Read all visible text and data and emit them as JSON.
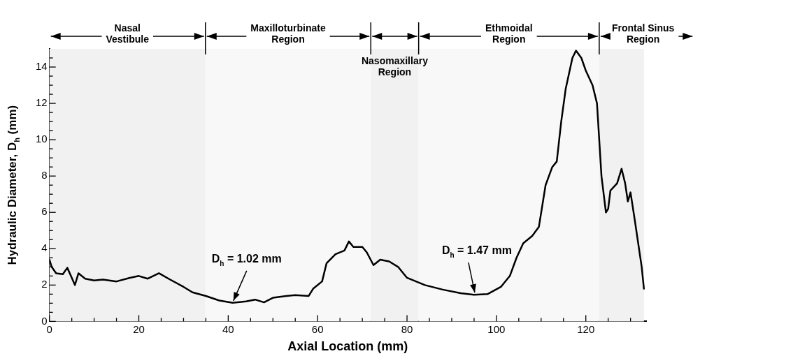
{
  "chart_data": {
    "type": "line",
    "xlabel": "Axial Location (mm)",
    "ylabel": "Hydraulic Diameter, D$_{h}$ (mm)",
    "color": "#000000",
    "grid": false,
    "legend": false,
    "marker": "none",
    "line_style": "solid",
    "xlim": [
      0,
      133.5
    ],
    "ylim": [
      0,
      15
    ],
    "xticks": [
      0,
      {
        "value": 5,
        "label": null
      },
      {
        "value": 10,
        "label": null
      },
      {
        "value": 15,
        "label": null
      },
      20,
      {
        "value": 25,
        "label": null
      },
      {
        "value": 30,
        "label": null
      },
      {
        "value": 35,
        "label": null
      },
      40,
      {
        "value": 45,
        "label": null
      },
      {
        "value": 50,
        "label": null
      },
      {
        "value": 55,
        "label": null
      },
      60,
      {
        "value": 65,
        "label": null
      },
      {
        "value": 70,
        "label": null
      },
      {
        "value": 75,
        "label": null
      },
      80,
      {
        "value": 85,
        "label": null
      },
      {
        "value": 90,
        "label": null
      },
      {
        "value": 95,
        "label": null
      },
      100,
      {
        "value": 105,
        "label": null
      },
      {
        "value": 110,
        "label": null
      },
      {
        "value": 115,
        "label": null
      },
      120,
      {
        "value": 125,
        "label": null
      },
      {
        "value": 130,
        "label": null
      }
    ],
    "yticks": [
      0,
      {
        "value": 0.5,
        "label": null
      },
      {
        "value": 1,
        "label": null
      },
      {
        "value": 1.5,
        "label": null
      },
      2,
      {
        "value": 2.5,
        "label": null
      },
      {
        "value": 3,
        "label": null
      },
      {
        "value": 3.5,
        "label": null
      },
      4,
      {
        "value": 4.5,
        "label": null
      },
      {
        "value": 5,
        "label": null
      },
      {
        "value": 5.5,
        "label": null
      },
      6,
      {
        "value": 6.5,
        "label": null
      },
      {
        "value": 7,
        "label": null
      },
      {
        "value": 7.5,
        "label": null
      },
      8,
      {
        "value": 8.5,
        "label": null
      },
      {
        "value": 9,
        "label": null
      },
      {
        "value": 9.5,
        "label": null
      },
      10,
      {
        "value": 10.5,
        "label": null
      },
      {
        "value": 11,
        "label": null
      },
      {
        "value": 11.5,
        "label": null
      },
      12,
      {
        "value": 12.5,
        "label": null
      },
      {
        "value": 13,
        "label": null
      },
      {
        "value": 13.5,
        "label": null
      },
      14,
      {
        "value": 14.5,
        "label": null
      }
    ],
    "x": [
      0,
      0.5,
      1.5,
      3,
      4,
      5,
      5.7,
      6.5,
      8,
      10,
      12,
      15,
      18,
      20,
      22,
      24.5,
      27,
      30,
      32,
      35,
      38,
      41,
      44,
      46,
      48,
      50,
      53,
      55,
      58,
      59,
      61,
      62,
      64,
      66,
      67,
      68,
      70,
      71,
      72.5,
      74,
      76,
      78,
      80,
      84,
      88,
      92,
      95,
      98,
      101,
      103,
      104.5,
      106,
      108,
      109.5,
      111,
      112.5,
      113.5,
      114.5,
      115.5,
      117,
      117.8,
      119,
      120,
      121.5,
      122.5,
      123.5,
      124.5,
      125,
      125.5,
      127,
      128,
      128.8,
      129.4,
      130,
      131,
      132.5,
      133
    ],
    "values": [
      3.4,
      3.0,
      2.65,
      2.6,
      2.95,
      2.4,
      2.0,
      2.65,
      2.35,
      2.25,
      2.3,
      2.2,
      2.4,
      2.5,
      2.35,
      2.65,
      2.3,
      1.9,
      1.6,
      1.4,
      1.15,
      1.02,
      1.1,
      1.2,
      1.05,
      1.3,
      1.4,
      1.45,
      1.4,
      1.8,
      2.2,
      3.2,
      3.7,
      3.9,
      4.4,
      4.1,
      4.1,
      3.8,
      3.1,
      3.4,
      3.3,
      3.0,
      2.4,
      2.0,
      1.75,
      1.55,
      1.47,
      1.5,
      1.9,
      2.5,
      3.5,
      4.3,
      4.7,
      5.2,
      7.5,
      8.5,
      8.8,
      11,
      12.8,
      14.5,
      14.9,
      14.5,
      13.8,
      13.0,
      12.0,
      8.0,
      6.0,
      6.2,
      7.2,
      7.6,
      8.4,
      7.6,
      6.6,
      7.1,
      5.5,
      3.0,
      1.8
    ],
    "bands": [
      {
        "axis": "x",
        "from": 0,
        "to": 34.9,
        "label": "Nasal\nVestibule"
      },
      {
        "axis": "x",
        "from": 34.9,
        "to": 71.9,
        "label": "Maxilloturbinate\nRegion"
      },
      {
        "axis": "x",
        "from": 71.9,
        "to": 82.6,
        "label": "Nasomaxillary\nRegion"
      },
      {
        "axis": "x",
        "from": 82.6,
        "to": 123,
        "label": "Ethmoidal\nRegion"
      },
      {
        "axis": "x",
        "from": 123,
        "to": 133,
        "label": "Frontal Sinus\nRegion"
      }
    ],
    "annotations": [
      {
        "text": "D$_{h}$ = 1.02 mm",
        "x": 41,
        "y": 1.02
      },
      {
        "text": "D$_{h}$ = 1.47 mm",
        "x": 95,
        "y": 1.47
      }
    ]
  }
}
